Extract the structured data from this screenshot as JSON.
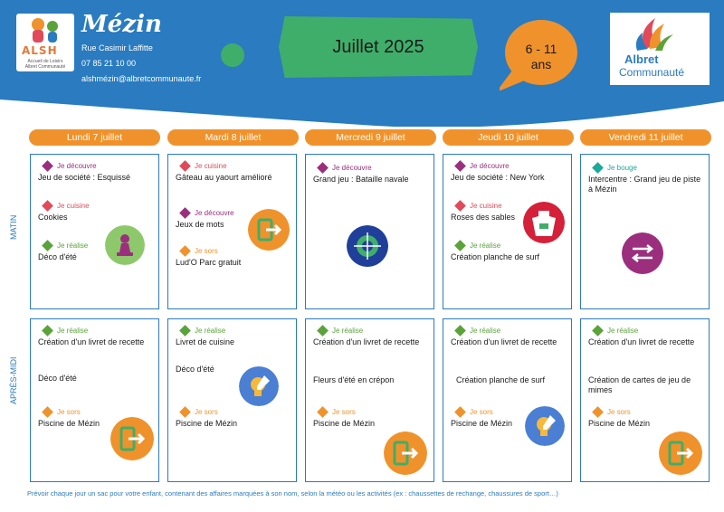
{
  "header": {
    "title": "Mézin",
    "address": "Rue Casimir Laffitte",
    "phone": "07 85 21 10 00",
    "email": "alshmézin@albretcommunaute.fr",
    "month": "Juillet 2025",
    "age_line1": "6 - 11",
    "age_line2": "ans",
    "logo_left": {
      "letters": "ALSH",
      "sub1": "Accueil de Loisirs",
      "sub2": "Albret Communauté"
    },
    "logo_right": {
      "line1": "Albret",
      "line2": "Communauté"
    }
  },
  "periods": {
    "morning": "MATIN",
    "afternoon": "APRÈS-MIDI"
  },
  "days": [
    "Lundi 7 juillet",
    "Mardi 8 juillet",
    "Mercredi 9 juillet",
    "Jeudi 10 juillet",
    "Vendredi 11 juillet"
  ],
  "morning": [
    {
      "items": [
        {
          "category": "Je découvre",
          "name": "Jeu de société : Esquissé"
        },
        {
          "category": "Je cuisine",
          "name": "Cookies"
        },
        {
          "category": "Je réalise",
          "name": "Déco d'été"
        }
      ]
    },
    {
      "items": [
        {
          "category": "Je cuisine",
          "name": "Gâteau au yaourt amélioré"
        },
        {
          "category": "Je découvre",
          "name": "Jeux de mots"
        },
        {
          "category": "Je sors",
          "name": "Lud'O Parc gratuit"
        }
      ]
    },
    {
      "items": [
        {
          "category": "Je découvre",
          "name": "Grand jeu : Bataille navale"
        }
      ]
    },
    {
      "items": [
        {
          "category": "Je découvre",
          "name": "Jeu de société : New York"
        },
        {
          "category": "Je cuisine",
          "name": "Roses des sables"
        },
        {
          "category": "Je réalise",
          "name": "Création planche de surf"
        }
      ]
    },
    {
      "items": [
        {
          "category": "Je bouge",
          "name": "Intercentre : Grand jeu de piste à Mézin"
        }
      ]
    }
  ],
  "afternoon": [
    {
      "items": [
        {
          "category": "Je réalise",
          "name": "Création d'un livret de recette"
        },
        {
          "category": "Je sors",
          "name": "Piscine de Mézin"
        }
      ],
      "note": "Déco d'été"
    },
    {
      "items": [
        {
          "category": "Je réalise",
          "name": "Livret de cuisine"
        },
        {
          "category": "Je sors",
          "name": "Piscine de Mézin"
        }
      ],
      "note": "Déco d'été"
    },
    {
      "items": [
        {
          "category": "Je réalise",
          "name": "Création d'un livret de recette"
        },
        {
          "category": "Je sors",
          "name": "Piscine de Mézin"
        }
      ],
      "note": "Fleurs d'été en crépon"
    },
    {
      "items": [
        {
          "category": "Je réalise",
          "name": "Création d'un livret de recette"
        },
        {
          "category": "Je sors",
          "name": "Piscine de Mézin"
        }
      ],
      "note": "Création planche de surf"
    },
    {
      "items": [
        {
          "category": "Je réalise",
          "name": "Création d'un livret de recette"
        },
        {
          "category": "Je sors",
          "name": "Piscine de Mézin"
        }
      ],
      "note": "Création de cartes de jeu de mimes"
    }
  ],
  "categories": {
    "Je découvre": {
      "color": "#9b2f7d"
    },
    "Je cuisine": {
      "color": "#e04a5a"
    },
    "Je réalise": {
      "color": "#5aa33a"
    },
    "Je sors": {
      "color": "#f0922b"
    },
    "Je bouge": {
      "color": "#1aa99a"
    }
  },
  "colors": {
    "blue": "#2a7bbf",
    "orange": "#f0922b",
    "green": "#3fae6a",
    "darkblue": "#1f5aa6"
  },
  "footer": "Prévoir chaque jour un sac pour votre enfant, contenant des affaires marquées à son nom, selon la météo ou les activités (ex : chaussettes de rechange, chaussures de sport…)"
}
